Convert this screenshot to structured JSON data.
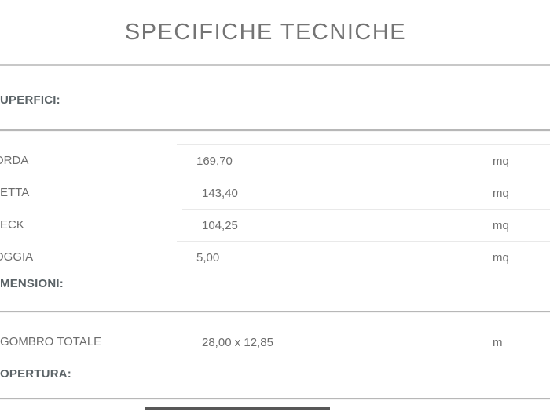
{
  "page": {
    "title": "SPECIFICHE TECNICHE"
  },
  "colors": {
    "text": "#6d6d6d",
    "title": "#747474",
    "section": "#5b6367",
    "divider-main": "#c8c8c8",
    "divider-sec": "#b7b7b7",
    "row-border": "#e9e9e9"
  },
  "sections": [
    {
      "label": "UPERFICI:",
      "rows": [
        {
          "label": "ORDA",
          "value": "169,70",
          "unit": "mq"
        },
        {
          "label": "ETTA",
          "value": "143,40",
          "unit": "mq"
        },
        {
          "label": "ECK",
          "value": "104,25",
          "unit": "mq"
        },
        {
          "label": "OGGIA",
          "value": "5,00",
          "unit": "mq"
        }
      ]
    },
    {
      "label": "MENSIONI:",
      "rows": [
        {
          "label": "GOMBRO TOTALE",
          "value": "28,00 x 12,85",
          "unit": "m"
        }
      ]
    },
    {
      "label": "OPERTURA:",
      "rows": []
    }
  ]
}
